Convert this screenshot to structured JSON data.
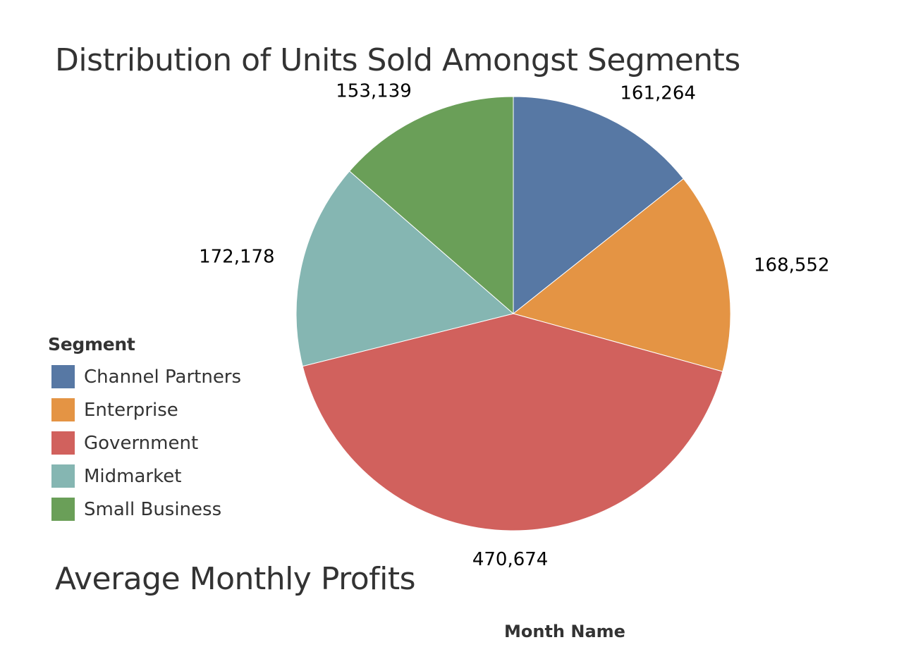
{
  "chart_data": {
    "type": "pie",
    "title": "Distribution of Units Sold Amongst Segments",
    "legend_title": "Segment",
    "legend_position": "left",
    "categories": [
      "Channel Partners",
      "Enterprise",
      "Government",
      "Midmarket",
      "Small Business"
    ],
    "values": [
      161264,
      168552,
      470674,
      172178,
      153139
    ],
    "labels": [
      "161,264",
      "168,552",
      "470,674",
      "172,178",
      "153,139"
    ],
    "colors": [
      "#5778a4",
      "#e49444",
      "#d1615d",
      "#85b6b2",
      "#6a9f58"
    ]
  },
  "section": {
    "title": "Average Monthly Profits",
    "axis_title": "Month Name"
  }
}
